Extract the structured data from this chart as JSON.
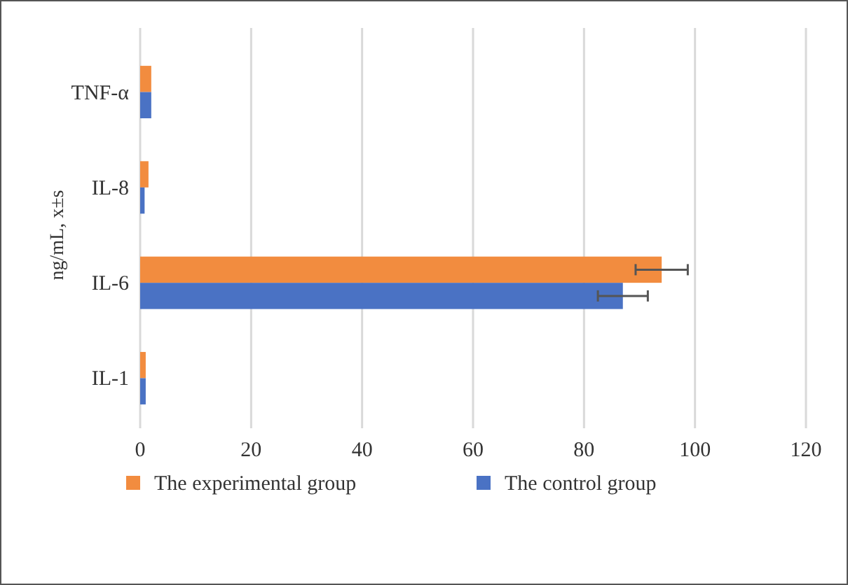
{
  "chart_data": {
    "type": "bar",
    "orientation": "horizontal",
    "ylabel": "ng/mL, x±s",
    "categories": [
      "TNF-α",
      "IL-8",
      "IL-6",
      "IL-1"
    ],
    "series": [
      {
        "name": "The experimental group",
        "color": "#f28c3f",
        "values": [
          2,
          1.5,
          94,
          1
        ],
        "errors": [
          null,
          null,
          4.7,
          null
        ]
      },
      {
        "name": "The control group",
        "color": "#4a72c4",
        "values": [
          2,
          0.8,
          87,
          1
        ],
        "errors": [
          null,
          null,
          4.5,
          null
        ]
      }
    ],
    "xlim": [
      0,
      120
    ],
    "xticks": [
      0,
      20,
      40,
      60,
      80,
      100,
      120
    ],
    "grid": "x",
    "legend": "bottom"
  }
}
